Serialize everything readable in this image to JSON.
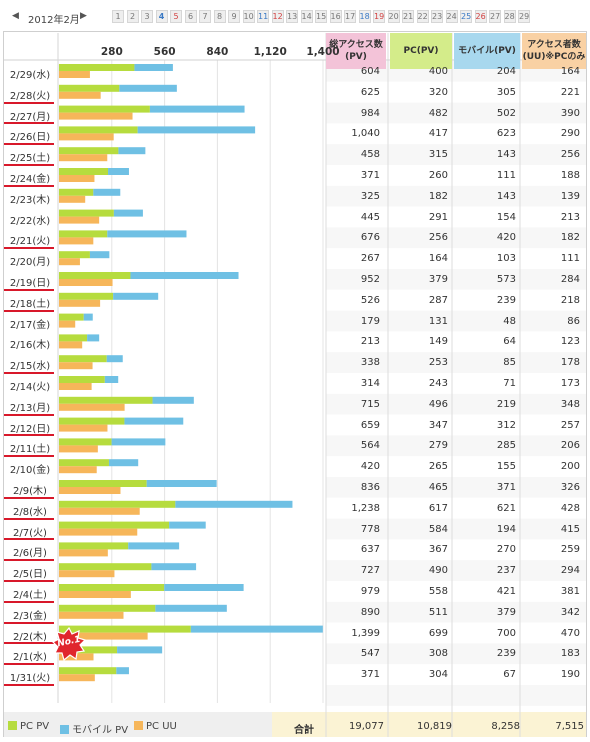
{
  "nav": {
    "prev_arrow": "◀",
    "next_arrow": "▶",
    "month_label": "2012年2月",
    "days": [
      {
        "label": "1",
        "type": "weekday"
      },
      {
        "label": "2",
        "type": "weekday"
      },
      {
        "label": "3",
        "type": "weekday"
      },
      {
        "label": "4",
        "type": "sat"
      },
      {
        "label": "5",
        "type": "sun"
      },
      {
        "label": "6",
        "type": "weekday"
      },
      {
        "label": "7",
        "type": "weekday"
      },
      {
        "label": "8",
        "type": "weekday"
      },
      {
        "label": "9",
        "type": "weekday"
      },
      {
        "label": "10",
        "type": "weekday"
      },
      {
        "label": "11",
        "type": "sat"
      },
      {
        "label": "12",
        "type": "sun"
      },
      {
        "label": "13",
        "type": "weekday"
      },
      {
        "label": "14",
        "type": "weekday"
      },
      {
        "label": "15",
        "type": "weekday"
      },
      {
        "label": "16",
        "type": "weekday"
      },
      {
        "label": "17",
        "type": "weekday"
      },
      {
        "label": "18",
        "type": "sat"
      },
      {
        "label": "19",
        "type": "sun"
      },
      {
        "label": "20",
        "type": "weekday"
      },
      {
        "label": "21",
        "type": "weekday"
      },
      {
        "label": "22",
        "type": "weekday"
      },
      {
        "label": "23",
        "type": "weekday"
      },
      {
        "label": "24",
        "type": "weekday"
      },
      {
        "label": "25",
        "type": "sat"
      },
      {
        "label": "26",
        "type": "sun"
      },
      {
        "label": "27",
        "type": "weekday"
      },
      {
        "label": "28",
        "type": "weekday"
      },
      {
        "label": "29",
        "type": "weekday"
      }
    ]
  },
  "headers": {
    "total": [
      "総アクセス数",
      "(PV)"
    ],
    "pc": [
      "PC(PV)"
    ],
    "mobile": [
      "モバイル(PV)"
    ],
    "uu": [
      "アクセス者数",
      "(UU)※PCのみ"
    ]
  },
  "legend": {
    "pc_pv": "PC PV",
    "mobile_pv": "モバイル PV",
    "pc_uu": "PC UU"
  },
  "totals": {
    "label": "合計",
    "total": "19,077",
    "pc": "10,819",
    "mobile": "8,258",
    "uu": "7,515"
  },
  "badge_text": "No.1",
  "colors": {
    "pc_pv": "#b6dc3e",
    "mobile_pv": "#6fc0e4",
    "pc_uu": "#f6b65a",
    "header_total": "#f3c3d8",
    "header_pc": "#d4ec8a",
    "header_mobile": "#a8d8ee",
    "header_uu": "#f9d1a4",
    "underline": "#d8182a",
    "badge": "#e0262d"
  },
  "chart_data": {
    "type": "bar",
    "orientation": "horizontal",
    "x_ticks": [
      "280",
      "560",
      "840",
      "1,120",
      "1,400"
    ],
    "x_tick_values": [
      280,
      560,
      840,
      1120,
      1400
    ],
    "xlim": [
      0,
      1400
    ],
    "categories": [
      "2/29(水)",
      "2/28(火)",
      "2/27(月)",
      "2/26(日)",
      "2/25(土)",
      "2/24(金)",
      "2/23(木)",
      "2/22(水)",
      "2/21(火)",
      "2/20(月)",
      "2/19(日)",
      "2/18(土)",
      "2/17(金)",
      "2/16(木)",
      "2/15(水)",
      "2/14(火)",
      "2/13(月)",
      "2/12(日)",
      "2/11(土)",
      "2/10(金)",
      "2/9(木)",
      "2/8(水)",
      "2/7(火)",
      "2/6(月)",
      "2/5(日)",
      "2/4(土)",
      "2/3(金)",
      "2/2(木)",
      "2/1(水)",
      "1/31(火)"
    ],
    "underlined": [
      false,
      true,
      true,
      true,
      true,
      true,
      false,
      false,
      true,
      false,
      true,
      true,
      false,
      false,
      true,
      false,
      true,
      true,
      true,
      false,
      true,
      true,
      true,
      true,
      true,
      true,
      true,
      true,
      true,
      true
    ],
    "total_pv": [
      604,
      625,
      984,
      1040,
      458,
      371,
      325,
      445,
      676,
      267,
      952,
      526,
      179,
      213,
      338,
      314,
      715,
      659,
      564,
      420,
      836,
      1238,
      778,
      637,
      727,
      979,
      890,
      1399,
      547,
      371
    ],
    "series": [
      {
        "name": "PC PV",
        "values": [
          400,
          320,
          482,
          417,
          315,
          260,
          182,
          291,
          256,
          164,
          379,
          287,
          131,
          149,
          253,
          243,
          496,
          347,
          279,
          265,
          465,
          617,
          584,
          367,
          490,
          558,
          511,
          699,
          308,
          304
        ]
      },
      {
        "name": "モバイル PV",
        "values": [
          204,
          305,
          502,
          623,
          143,
          111,
          143,
          154,
          420,
          103,
          573,
          239,
          48,
          64,
          85,
          71,
          219,
          312,
          285,
          155,
          371,
          621,
          194,
          270,
          237,
          421,
          379,
          700,
          239,
          67
        ]
      },
      {
        "name": "PC UU",
        "values": [
          164,
          221,
          390,
          290,
          256,
          188,
          139,
          213,
          182,
          111,
          284,
          218,
          86,
          123,
          178,
          173,
          348,
          257,
          206,
          200,
          326,
          428,
          415,
          259,
          294,
          381,
          342,
          470,
          183,
          190
        ]
      }
    ]
  }
}
